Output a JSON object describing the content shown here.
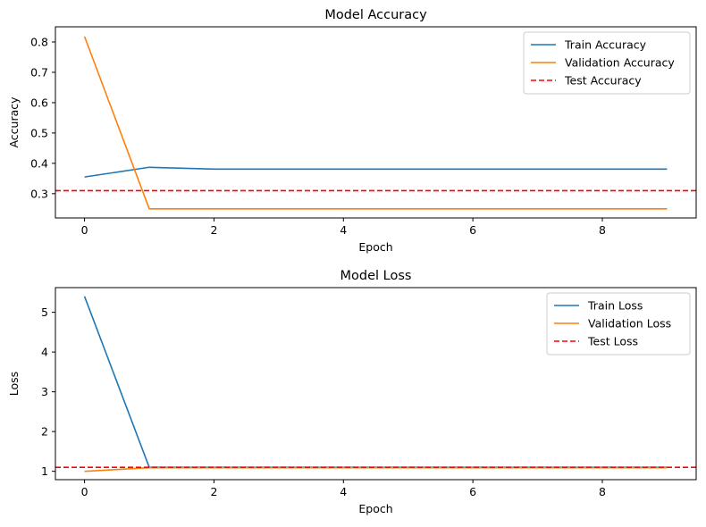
{
  "chart_data": [
    {
      "type": "line",
      "title": "Model Accuracy",
      "xlabel": "Epoch",
      "ylabel": "Accuracy",
      "xlim": [
        -0.45,
        9.45
      ],
      "ylim": [
        0.22,
        0.85
      ],
      "xticks": [
        0,
        2,
        4,
        6,
        8
      ],
      "yticks": [
        0.3,
        0.4,
        0.5,
        0.6,
        0.7,
        0.8
      ],
      "x": [
        0,
        1,
        2,
        3,
        4,
        5,
        6,
        7,
        8,
        9
      ],
      "grid": false,
      "legend_position": "top-right",
      "series": [
        {
          "name": "Train Accuracy",
          "color": "#1f77b4",
          "style": "solid",
          "values": [
            0.355,
            0.387,
            0.381,
            0.381,
            0.381,
            0.381,
            0.381,
            0.381,
            0.381,
            0.381
          ]
        },
        {
          "name": "Validation Accuracy",
          "color": "#ff7f0e",
          "style": "solid",
          "values": [
            0.818,
            0.25,
            0.25,
            0.25,
            0.25,
            0.25,
            0.25,
            0.25,
            0.25,
            0.25
          ]
        }
      ],
      "hlines": [
        {
          "name": "Test Accuracy",
          "color": "#ff0000",
          "style": "dashed",
          "value": 0.31
        }
      ]
    },
    {
      "type": "line",
      "title": "Model Loss",
      "xlabel": "Epoch",
      "ylabel": "Loss",
      "xlim": [
        -0.45,
        9.45
      ],
      "ylim": [
        0.79,
        5.62
      ],
      "xticks": [
        0,
        2,
        4,
        6,
        8
      ],
      "yticks": [
        1,
        2,
        3,
        4,
        5
      ],
      "x": [
        0,
        1,
        2,
        3,
        4,
        5,
        6,
        7,
        8,
        9
      ],
      "grid": false,
      "legend_position": "top-right",
      "series": [
        {
          "name": "Train Loss",
          "color": "#1f77b4",
          "style": "solid",
          "values": [
            5.4,
            1.1,
            1.1,
            1.1,
            1.1,
            1.1,
            1.1,
            1.1,
            1.1,
            1.1
          ]
        },
        {
          "name": "Validation Loss",
          "color": "#ff7f0e",
          "style": "solid",
          "values": [
            1.0,
            1.09,
            1.09,
            1.09,
            1.09,
            1.09,
            1.09,
            1.09,
            1.09,
            1.09
          ]
        }
      ],
      "hlines": [
        {
          "name": "Test Loss",
          "color": "#ff0000",
          "style": "dashed",
          "value": 1.1
        }
      ]
    }
  ]
}
